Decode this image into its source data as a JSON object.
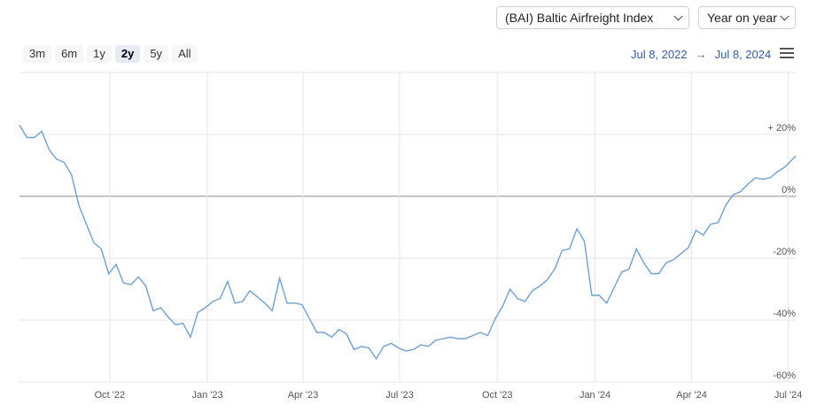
{
  "controls": {
    "index_select": "(BAI) Baltic Airfreight Index",
    "mode_select": "Year on year",
    "ranges": [
      "3m",
      "6m",
      "1y",
      "2y",
      "5y",
      "All"
    ],
    "active_range": "2y",
    "date_from": "Jul 8, 2022",
    "date_arrow": "→",
    "date_to": "Jul 8, 2024",
    "menu_icon": "hamburger-menu-icon"
  },
  "chart_data": {
    "type": "line",
    "title": "",
    "xlabel": "",
    "ylabel": "",
    "x_ticks": [
      "Oct '22",
      "Jan '23",
      "Apr '23",
      "Jul '23",
      "Oct '23",
      "Jan '24",
      "Apr '24",
      "Jul '24"
    ],
    "y_ticks": [
      "+ 20%",
      "0%",
      "-20%",
      "-40%",
      "-60%"
    ],
    "y_tick_values": [
      20,
      0,
      -20,
      -40,
      -60
    ],
    "ylim": [
      -60,
      40
    ],
    "x_range": [
      "2022-07-08",
      "2024-07-08"
    ],
    "grid": true,
    "line_color": "#6e9fd8",
    "series": [
      {
        "x": [
          "2022-07-08",
          "2022-07-15",
          "2022-07-22",
          "2022-07-29",
          "2022-08-05",
          "2022-08-12",
          "2022-08-19",
          "2022-08-26",
          "2022-09-02",
          "2022-09-09",
          "2022-09-16",
          "2022-09-23",
          "2022-09-30",
          "2022-10-07",
          "2022-10-14",
          "2022-10-21",
          "2022-10-28",
          "2022-11-04",
          "2022-11-11",
          "2022-11-18",
          "2022-11-25",
          "2022-12-02",
          "2022-12-09",
          "2022-12-16",
          "2022-12-23",
          "2022-12-30",
          "2023-01-06",
          "2023-01-13",
          "2023-01-20",
          "2023-01-27",
          "2023-02-03",
          "2023-02-10",
          "2023-02-17",
          "2023-02-24",
          "2023-03-03",
          "2023-03-10",
          "2023-03-17",
          "2023-03-24",
          "2023-03-31",
          "2023-04-07",
          "2023-04-14",
          "2023-04-21",
          "2023-04-28",
          "2023-05-05",
          "2023-05-12",
          "2023-05-19",
          "2023-05-26",
          "2023-06-02",
          "2023-06-09",
          "2023-06-16",
          "2023-06-23",
          "2023-06-30",
          "2023-07-07",
          "2023-07-14",
          "2023-07-21",
          "2023-07-28",
          "2023-08-04",
          "2023-08-11",
          "2023-08-18",
          "2023-08-25",
          "2023-09-01",
          "2023-09-08",
          "2023-09-15",
          "2023-09-22",
          "2023-09-29",
          "2023-10-06",
          "2023-10-13",
          "2023-10-20",
          "2023-10-27",
          "2023-11-03",
          "2023-11-10",
          "2023-11-17",
          "2023-11-24",
          "2023-12-01",
          "2023-12-08",
          "2023-12-15",
          "2023-12-22",
          "2023-12-29",
          "2024-01-05",
          "2024-01-12",
          "2024-01-19",
          "2024-01-26",
          "2024-02-02",
          "2024-02-09",
          "2024-02-16",
          "2024-02-23",
          "2024-03-01",
          "2024-03-08",
          "2024-03-15",
          "2024-03-22",
          "2024-03-29",
          "2024-04-05",
          "2024-04-12",
          "2024-04-19",
          "2024-04-26",
          "2024-05-03",
          "2024-05-10",
          "2024-05-17",
          "2024-05-24",
          "2024-05-31",
          "2024-06-07",
          "2024-06-14",
          "2024-06-21",
          "2024-06-28",
          "2024-07-05",
          "2024-07-08"
        ],
        "values": [
          23,
          19,
          19,
          21,
          15,
          12,
          11,
          7,
          -3,
          -9,
          -15,
          -17,
          -25,
          -22,
          -28,
          -28.5,
          -26,
          -29,
          -37,
          -36,
          -39,
          -41.5,
          -41,
          -45.5,
          -37.5,
          -36,
          -34,
          -33,
          -27.5,
          -34.5,
          -34,
          -30.5,
          -32.5,
          -34.5,
          -37,
          -26.5,
          -34.5,
          -34.5,
          -35,
          -39.5,
          -44,
          -44,
          -45.5,
          -43,
          -44.5,
          -49.5,
          -48.5,
          -49,
          -52.5,
          -48.5,
          -47.5,
          -49,
          -50,
          -49.5,
          -48,
          -48.5,
          -46.5,
          -46,
          -45.5,
          -46,
          -46,
          -45,
          -44,
          -45,
          -39.5,
          -35.5,
          -30,
          -33,
          -34,
          -30.5,
          -29,
          -27,
          -23.5,
          -17.5,
          -17,
          -10.5,
          -14.5,
          -32,
          -32,
          -34.5,
          -29.5,
          -24.5,
          -23.5,
          -17,
          -21.5,
          -25,
          -25,
          -21.5,
          -20.5,
          -18.5,
          -16.5,
          -11,
          -12.5,
          -9,
          -8.5,
          -3,
          0.5,
          1.5,
          4,
          6,
          5.5,
          6,
          8,
          9.5,
          12,
          13
        ]
      }
    ]
  }
}
